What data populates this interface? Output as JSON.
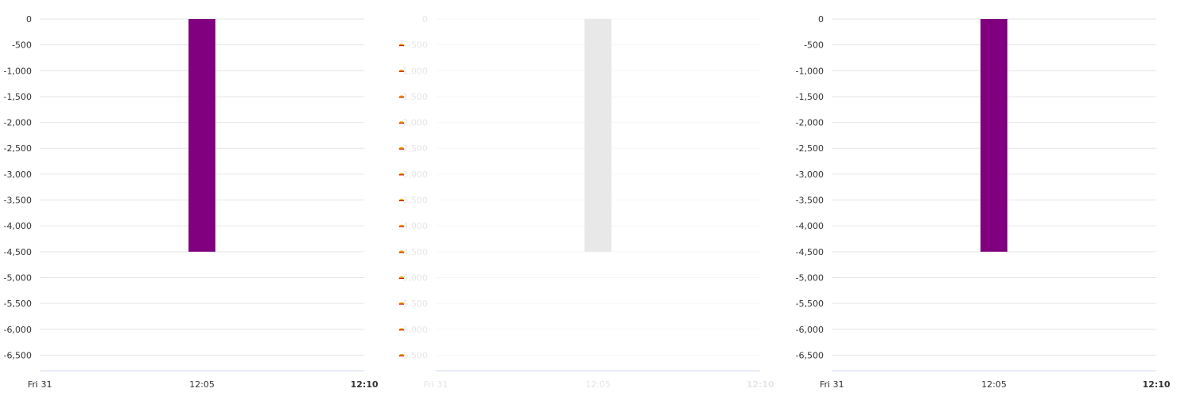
{
  "chart_data": [
    {
      "type": "bar",
      "categories": [
        "12:05"
      ],
      "values": [
        -4500
      ],
      "ylim": [
        -6800,
        0
      ],
      "yticks": [
        0,
        -500,
        -1000,
        -1500,
        -2000,
        -2500,
        -3000,
        -3500,
        -4000,
        -4500,
        -5000,
        -5500,
        -6000,
        -6500
      ],
      "ytick_labels": [
        "0",
        "-500",
        "-1,000",
        "-1,500",
        "-2,000",
        "-2,500",
        "-3,000",
        "-3,500",
        "-4,000",
        "-4,500",
        "-5,000",
        "-5,500",
        "-6,000",
        "-6,500"
      ],
      "xtick_labels": [
        "Fri 31",
        "12:05",
        "12:10"
      ],
      "bar_color": "#800080",
      "state": "normal"
    },
    {
      "type": "bar",
      "categories": [
        "12:05"
      ],
      "values": [
        -4500
      ],
      "ylim": [
        -6800,
        0
      ],
      "yticks": [
        0,
        -500,
        -1000,
        -1500,
        -2000,
        -2500,
        -3000,
        -3500,
        -4000,
        -4500,
        -5000,
        -5500,
        -6000,
        -6500
      ],
      "ytick_labels": [
        "0",
        "-500",
        "-1,000",
        "-1,500",
        "-2,000",
        "-2,500",
        "-3,000",
        "-3,500",
        "-4,000",
        "-4,500",
        "-5,000",
        "-5,500",
        "-6,000",
        "-6,500"
      ],
      "xtick_labels": [
        "Fri 31",
        "12:05",
        "12:10"
      ],
      "bar_color": "#e8e8e8",
      "state": "faded"
    },
    {
      "type": "bar",
      "categories": [
        "12:05"
      ],
      "values": [
        -4500
      ],
      "ylim": [
        -6800,
        0
      ],
      "yticks": [
        0,
        -500,
        -1000,
        -1500,
        -2000,
        -2500,
        -3000,
        -3500,
        -4000,
        -4500,
        -5000,
        -5500,
        -6000,
        -6500
      ],
      "ytick_labels": [
        "0",
        "-500",
        "-1,000",
        "-1,500",
        "-2,000",
        "-2,500",
        "-3,000",
        "-3,500",
        "-4,000",
        "-4,500",
        "-5,000",
        "-5,500",
        "-6,000",
        "-6,500"
      ],
      "xtick_labels": [
        "Fri 31",
        "12:05",
        "12:10"
      ],
      "bar_color": "#800080",
      "state": "normal"
    }
  ]
}
